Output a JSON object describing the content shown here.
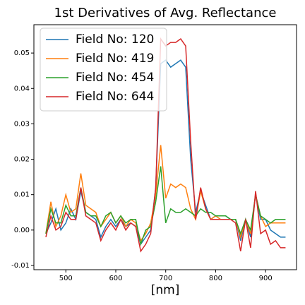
{
  "chart_data": {
    "type": "line",
    "title": "1st Derivatives of Avg. Reflectance",
    "x_label": "[nm]",
    "x": [
      460,
      470,
      480,
      490,
      500,
      510,
      520,
      530,
      540,
      550,
      560,
      570,
      580,
      590,
      600,
      610,
      620,
      630,
      640,
      650,
      660,
      670,
      680,
      690,
      700,
      710,
      720,
      730,
      740,
      750,
      760,
      770,
      780,
      790,
      800,
      810,
      820,
      830,
      840,
      850,
      860,
      870,
      880,
      890,
      900,
      910,
      920,
      930,
      940
    ],
    "series": [
      {
        "name": "Field No: 120",
        "color": "#1f77b4",
        "values": [
          -0.001,
          0.002,
          0.006,
          0.0,
          0.002,
          0.006,
          0.003,
          0.011,
          0.005,
          0.004,
          0.003,
          -0.002,
          0.001,
          0.003,
          0.001,
          0.003,
          0.001,
          0.002,
          0.001,
          -0.004,
          -0.002,
          0.0,
          0.012,
          0.047,
          0.048,
          0.046,
          0.047,
          0.048,
          0.046,
          0.02,
          0.005,
          0.011,
          0.007,
          0.003,
          0.004,
          0.004,
          0.004,
          0.003,
          0.003,
          -0.003,
          0.003,
          -0.002,
          0.01,
          0.003,
          0.003,
          0.0,
          -0.001,
          -0.002,
          -0.002
        ]
      },
      {
        "name": "Field No: 419",
        "color": "#ff7f0e",
        "values": [
          -0.001,
          0.008,
          0.001,
          0.004,
          0.01,
          0.005,
          0.006,
          0.016,
          0.007,
          0.006,
          0.005,
          0.001,
          0.003,
          0.005,
          0.002,
          0.004,
          0.001,
          0.003,
          0.002,
          -0.003,
          -0.001,
          0.002,
          0.01,
          0.024,
          0.009,
          0.013,
          0.012,
          0.013,
          0.012,
          0.006,
          0.003,
          0.011,
          0.006,
          0.003,
          0.004,
          0.003,
          0.003,
          0.003,
          0.003,
          -0.002,
          0.003,
          -0.001,
          0.01,
          0.004,
          0.001,
          0.002,
          0.002,
          0.002,
          0.002
        ]
      },
      {
        "name": "Field No: 454",
        "color": "#2ca02c",
        "values": [
          -0.001,
          0.006,
          0.002,
          0.002,
          0.007,
          0.004,
          0.004,
          0.012,
          0.005,
          0.004,
          0.004,
          0.001,
          0.004,
          0.005,
          0.002,
          0.004,
          0.002,
          0.003,
          0.003,
          -0.004,
          0.0,
          0.001,
          0.008,
          0.018,
          0.002,
          0.006,
          0.005,
          0.005,
          0.006,
          0.005,
          0.004,
          0.006,
          0.005,
          0.005,
          0.004,
          0.004,
          0.004,
          0.003,
          0.003,
          -0.001,
          0.003,
          0.0,
          0.01,
          0.004,
          0.003,
          0.002,
          0.003,
          0.003,
          0.003
        ]
      },
      {
        "name": "Field No: 644",
        "color": "#d62728",
        "values": [
          -0.002,
          0.004,
          0.0,
          0.001,
          0.005,
          0.003,
          0.003,
          0.012,
          0.004,
          0.003,
          0.002,
          -0.003,
          0.0,
          0.002,
          0.0,
          0.003,
          0.0,
          0.002,
          0.001,
          -0.006,
          -0.004,
          -0.001,
          0.012,
          0.054,
          0.052,
          0.053,
          0.053,
          0.054,
          0.052,
          0.025,
          0.003,
          0.012,
          0.006,
          0.003,
          0.003,
          0.003,
          0.003,
          0.003,
          0.002,
          -0.006,
          0.003,
          -0.005,
          0.011,
          -0.001,
          0.0,
          -0.004,
          -0.003,
          -0.005,
          -0.005
        ]
      }
    ],
    "xlim": [
      436,
      962
    ],
    "xticks": [
      500,
      600,
      700,
      800,
      900
    ],
    "ylim": [
      -0.0112,
      0.058
    ],
    "yticks": [
      -0.01,
      {
        "value": 0,
        "label": "0.00"
      },
      0.01,
      0.02,
      0.03,
      0.04,
      0.05
    ],
    "legend": "upper left"
  }
}
